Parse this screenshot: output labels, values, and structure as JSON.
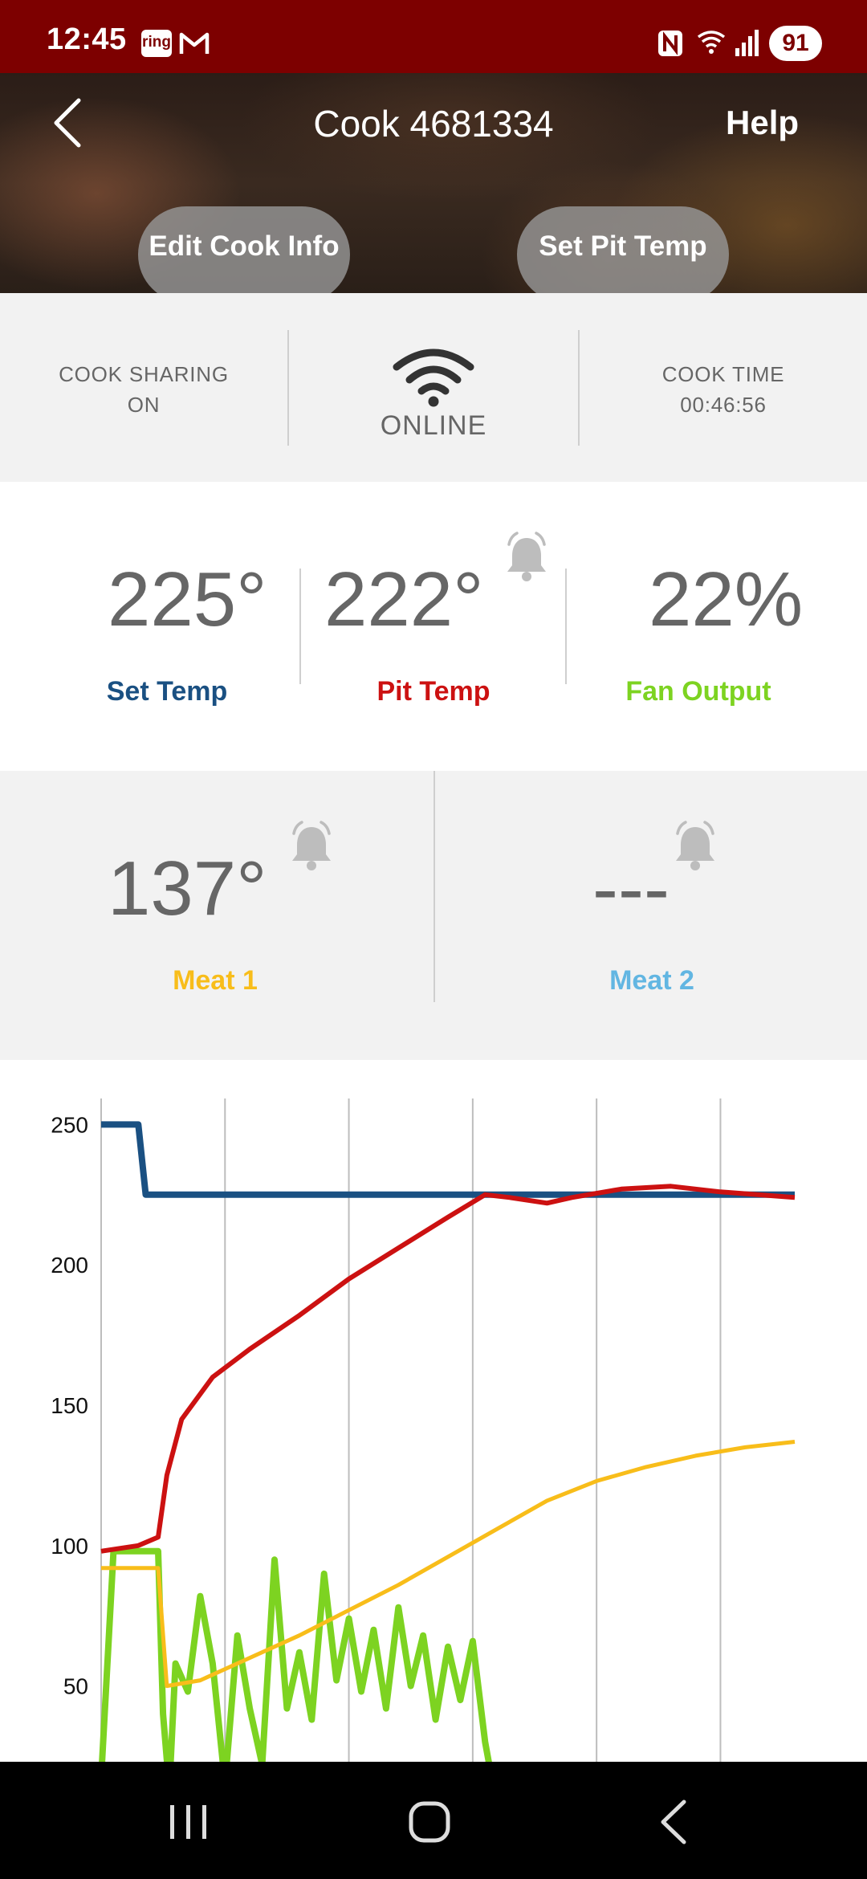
{
  "status_bar": {
    "time": "12:45",
    "ring_label": "ring",
    "battery": "91",
    "icons": [
      "ring-icon",
      "gmail-icon",
      "nfc-icon",
      "wifi-icon",
      "signal-icon"
    ]
  },
  "header": {
    "title": "Cook 4681334",
    "help": "Help",
    "edit_cook_info": "Edit Cook Info",
    "set_pit_temp": "Set Pit Temp"
  },
  "status_row": {
    "sharing_line1": "COOK SHARING",
    "sharing_line2": "ON",
    "online": "ONLINE",
    "cook_time_label": "COOK TIME",
    "cook_time_value": "00:46:56"
  },
  "temps": {
    "set_temp_value": "225°",
    "set_temp_label": "Set Temp",
    "pit_temp_value": "222°",
    "pit_temp_label": "Pit Temp",
    "fan_output_value": "22%",
    "fan_output_label": "Fan Output"
  },
  "meat": {
    "meat1_value": "137°",
    "meat1_label": "Meat 1",
    "meat2_value": "---",
    "meat2_label": "Meat 2"
  },
  "colors": {
    "status_bar": "#7d0000",
    "set_temp": "#1a5082",
    "pit_temp": "#cc1111",
    "fan_output": "#7dd321",
    "meat1": "#f8bd1a",
    "meat2": "#62b6e2",
    "value_gray": "#666666"
  },
  "chart_data": {
    "type": "line",
    "y_ticks": [
      250,
      200,
      150,
      100,
      50
    ],
    "ylim": [
      23,
      273
    ],
    "x": [
      0,
      4,
      8,
      12,
      16,
      20,
      24,
      28,
      32,
      36,
      40,
      44,
      48,
      52,
      56
    ],
    "xlim": [
      0,
      56
    ],
    "grid": true,
    "series": [
      {
        "key": "set",
        "color": "#1a5082",
        "points": [
          [
            0,
            250
          ],
          [
            3,
            250
          ],
          [
            3.6,
            225
          ],
          [
            56,
            225
          ]
        ]
      },
      {
        "key": "pit",
        "color": "#cc1111",
        "points": [
          [
            0,
            98
          ],
          [
            3,
            100
          ],
          [
            4.6,
            103
          ],
          [
            5.3,
            125
          ],
          [
            6.5,
            145
          ],
          [
            9,
            160
          ],
          [
            12,
            170
          ],
          [
            16,
            182
          ],
          [
            20,
            195
          ],
          [
            24,
            206
          ],
          [
            28,
            217
          ],
          [
            31,
            225
          ],
          [
            33,
            224
          ],
          [
            36,
            222
          ],
          [
            38,
            224
          ],
          [
            42,
            227
          ],
          [
            46,
            228
          ],
          [
            50,
            226
          ],
          [
            53,
            225
          ],
          [
            56,
            224
          ]
        ]
      },
      {
        "key": "meat1",
        "color": "#f8bd1a",
        "points": [
          [
            0,
            92
          ],
          [
            4.6,
            92
          ],
          [
            5.3,
            50
          ],
          [
            8,
            52
          ],
          [
            12,
            60
          ],
          [
            16,
            68
          ],
          [
            20,
            77
          ],
          [
            24,
            86
          ],
          [
            28,
            96
          ],
          [
            32,
            106
          ],
          [
            36,
            116
          ],
          [
            40,
            123
          ],
          [
            44,
            128
          ],
          [
            48,
            132
          ],
          [
            52,
            135
          ],
          [
            56,
            137
          ]
        ]
      },
      {
        "key": "fan",
        "color": "#7dd321",
        "points": [
          [
            0,
            17
          ],
          [
            1,
            98
          ],
          [
            4.6,
            98
          ],
          [
            5,
            40
          ],
          [
            5.5,
            13
          ],
          [
            6,
            58
          ],
          [
            7,
            48
          ],
          [
            8,
            82
          ],
          [
            9,
            58
          ],
          [
            10,
            15
          ],
          [
            11,
            68
          ],
          [
            12,
            42
          ],
          [
            13,
            22
          ],
          [
            14,
            95
          ],
          [
            15,
            42
          ],
          [
            16,
            62
          ],
          [
            17,
            38
          ],
          [
            18,
            90
          ],
          [
            19,
            52
          ],
          [
            20,
            74
          ],
          [
            21,
            48
          ],
          [
            22,
            70
          ],
          [
            23,
            42
          ],
          [
            24,
            78
          ],
          [
            25,
            50
          ],
          [
            26,
            68
          ],
          [
            27,
            38
          ],
          [
            28,
            64
          ],
          [
            29,
            45
          ],
          [
            30,
            66
          ],
          [
            31,
            30
          ],
          [
            31.5,
            18
          ],
          [
            32,
            8
          ],
          [
            33,
            20
          ],
          [
            34,
            9
          ],
          [
            35,
            16
          ],
          [
            36,
            6
          ],
          [
            37,
            11
          ],
          [
            38,
            5
          ],
          [
            40,
            9
          ],
          [
            42,
            4
          ],
          [
            44,
            10
          ],
          [
            46,
            7
          ],
          [
            48,
            11
          ],
          [
            50,
            8
          ],
          [
            52,
            14
          ],
          [
            54,
            9
          ],
          [
            55,
            16
          ],
          [
            56,
            22
          ]
        ]
      }
    ]
  }
}
